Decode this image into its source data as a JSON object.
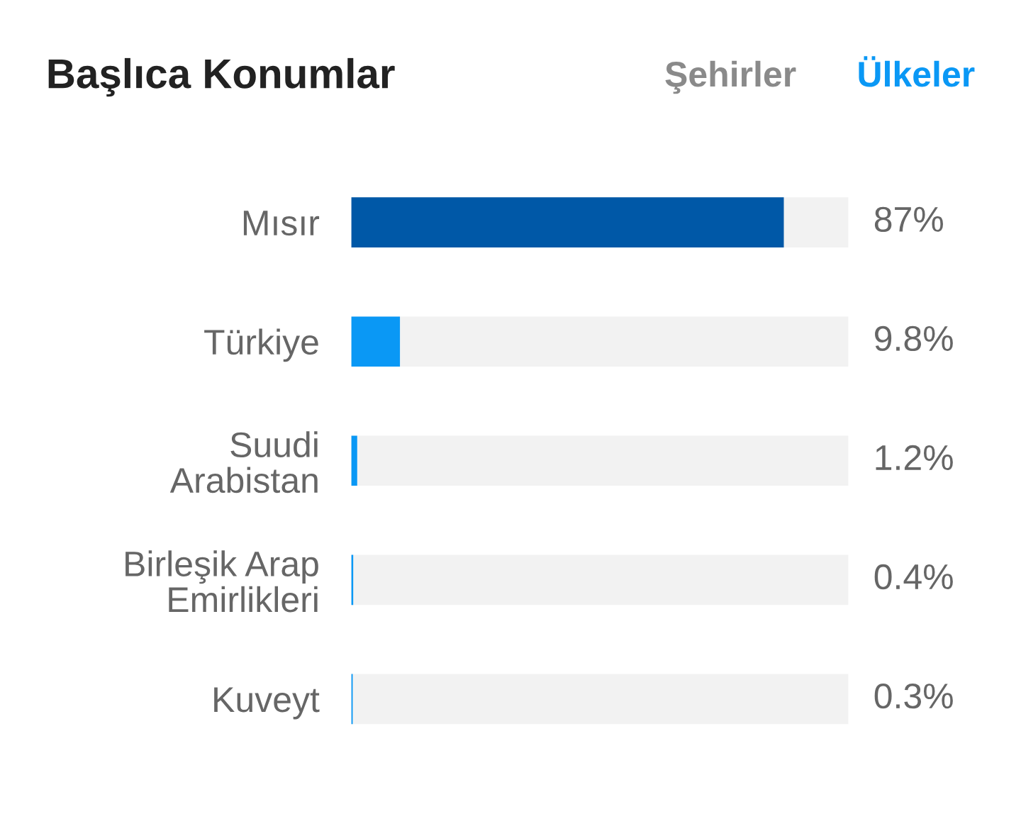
{
  "chart_data": {
    "type": "bar",
    "orientation": "horizontal",
    "title": "Başlıca Konumlar",
    "annotations": [
      "Şehirler",
      "Ülkeler"
    ],
    "categories": [
      "Mısır",
      "Türkiye",
      "Suudi\nArabistan",
      "Birleşik Arap\nEmirlikleri",
      "Kuveyt"
    ],
    "values": [
      87,
      9.8,
      1.2,
      0.4,
      0.3
    ],
    "colors": [
      "#0058a7",
      "#0a98f5",
      "#0a98f5",
      "#0a98f5",
      "#0a98f5"
    ],
    "value_labels": [
      "87%",
      "9.8%",
      "1.2%",
      "0.4%",
      "0.3%"
    ],
    "xlim": [
      0,
      100
    ],
    "grid": false,
    "legend": false
  }
}
